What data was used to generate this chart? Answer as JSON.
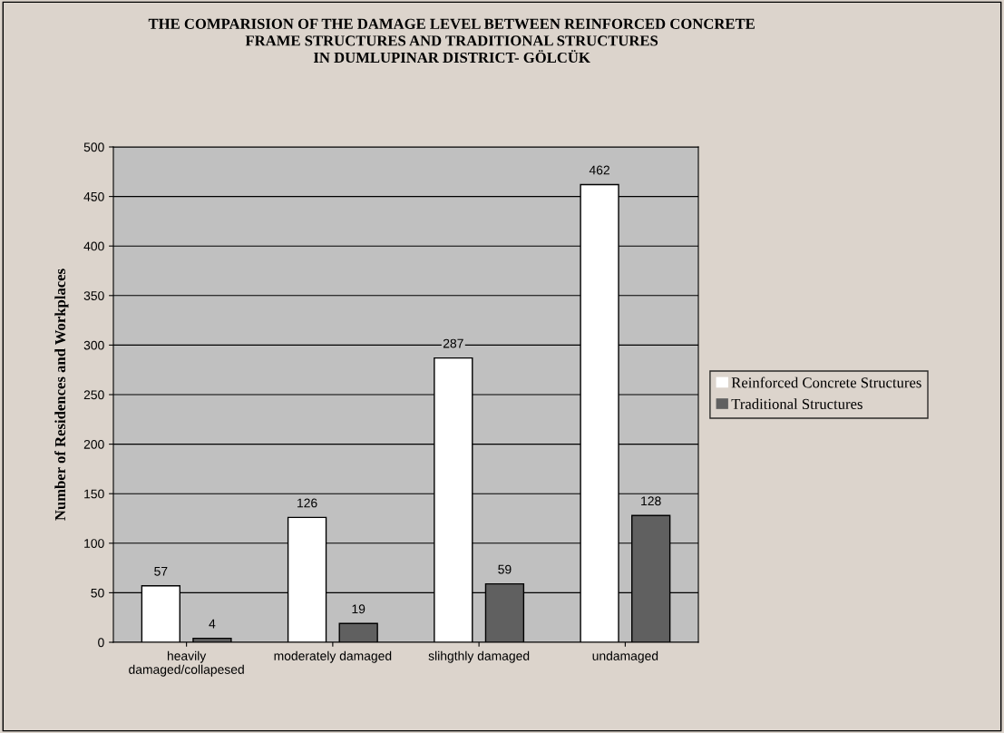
{
  "chart_data": {
    "type": "bar",
    "title": "THE COMPARISION OF THE DAMAGE LEVEL BETWEEN REINFORCED CONCRETE\nFRAME STRUCTURES AND TRADITIONAL STRUCTURES\nIN DUMLUPINAR DISTRICT- GÖLCÜK",
    "ylabel": "Number of Residences and Workplaces",
    "categories": [
      "heavily\ndamaged/collapesed",
      "moderately damaged",
      "slihgthly damaged",
      "undamaged"
    ],
    "series": [
      {
        "name": "Reinforced Concrete Structures",
        "color": "#ffffff",
        "values": [
          57,
          126,
          287,
          462
        ]
      },
      {
        "name": "Traditional Structures",
        "color": "#606060",
        "values": [
          4,
          19,
          59,
          128
        ]
      }
    ],
    "ylim": [
      0,
      500
    ],
    "yticks": [
      0,
      50,
      100,
      150,
      200,
      250,
      300,
      350,
      400,
      450,
      500
    ],
    "grid": "y",
    "legend": "right",
    "data_labels": true
  }
}
